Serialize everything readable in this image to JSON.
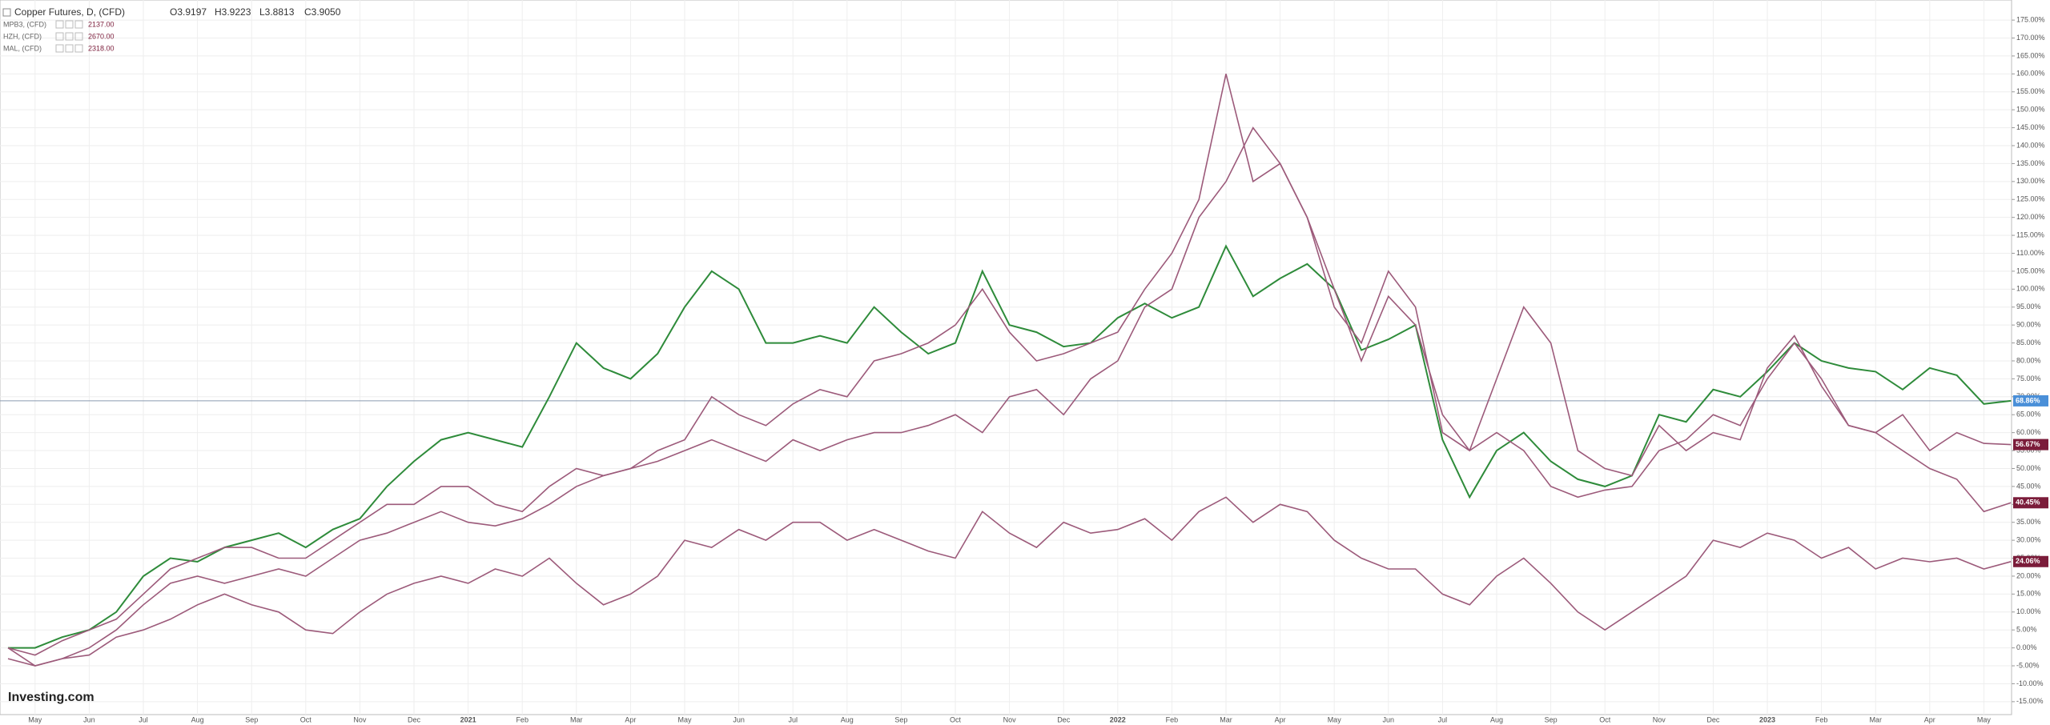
{
  "chart_data": {
    "type": "line",
    "ohlc": [
      "O3.9197",
      "H3.9223",
      "L3.8813",
      "C3.9050"
    ],
    "watermark": "Investing.com",
    "categories": [
      null,
      "May",
      null,
      "Jun",
      null,
      "Jul",
      null,
      "Aug",
      null,
      "Sep",
      null,
      "Oct",
      null,
      "Nov",
      null,
      "Dec",
      null,
      "2021",
      null,
      "Feb",
      null,
      "Mar",
      null,
      "Apr",
      null,
      "May",
      null,
      "Jun",
      null,
      "Jul",
      null,
      "Aug",
      null,
      "Sep",
      null,
      "Oct",
      null,
      "Nov",
      null,
      "Dec",
      null,
      "2022",
      null,
      "Feb",
      null,
      "Mar",
      null,
      "Apr",
      null,
      "May",
      null,
      "Jun",
      null,
      "Jul",
      null,
      "Aug",
      null,
      "Sep",
      null,
      "Oct",
      null,
      "Nov",
      null,
      "Dec",
      null,
      "2023",
      null,
      "Feb",
      null,
      "Mar",
      null,
      "Apr",
      null,
      "May",
      null
    ],
    "series": [
      {
        "name": "Copper Futures, D, (CFD)",
        "color": "#2e8b3a",
        "label_color": "#4a8fd8",
        "last_value_label": "68.86%",
        "values": [
          0,
          0,
          3,
          5,
          10,
          20,
          25,
          24,
          28,
          30,
          32,
          28,
          33,
          36,
          45,
          52,
          58,
          60,
          58,
          56,
          70,
          85,
          78,
          75,
          82,
          95,
          105,
          100,
          85,
          85,
          87,
          85,
          95,
          88,
          82,
          85,
          105,
          90,
          88,
          84,
          85,
          92,
          96,
          92,
          95,
          112,
          98,
          103,
          107,
          100,
          83,
          86,
          90,
          58,
          42,
          55,
          60,
          52,
          47,
          45,
          48,
          65,
          63,
          72,
          70,
          77,
          85,
          80,
          78,
          77,
          72,
          78,
          76,
          68,
          68.86
        ]
      },
      {
        "name": "MPB3, (CFD)",
        "legend_value": "2137.00",
        "color": "#9c5a7a",
        "label_color": "#7b1c3a",
        "last_value_label": "56.67%",
        "values": [
          0,
          -2,
          2,
          5,
          8,
          15,
          22,
          25,
          28,
          28,
          25,
          25,
          30,
          35,
          40,
          40,
          45,
          45,
          40,
          38,
          45,
          50,
          48,
          50,
          55,
          58,
          70,
          65,
          62,
          68,
          72,
          70,
          80,
          82,
          85,
          90,
          100,
          88,
          80,
          82,
          85,
          88,
          100,
          110,
          125,
          160,
          130,
          135,
          120,
          95,
          85,
          105,
          95,
          60,
          55,
          75,
          95,
          85,
          55,
          50,
          48,
          62,
          55,
          60,
          58,
          78,
          87,
          73,
          62,
          60,
          65,
          55,
          60,
          57,
          56.67
        ]
      },
      {
        "name": "HZH, (CFD)",
        "legend_value": "2670.00",
        "color": "#9c5a7a",
        "label_color": "#7b1c3a",
        "last_value_label": "40.45%",
        "values": [
          0,
          -5,
          -3,
          0,
          5,
          12,
          18,
          20,
          18,
          20,
          22,
          20,
          25,
          30,
          32,
          35,
          38,
          35,
          34,
          36,
          40,
          45,
          48,
          50,
          52,
          55,
          58,
          55,
          52,
          58,
          55,
          58,
          60,
          60,
          62,
          65,
          60,
          70,
          72,
          65,
          75,
          80,
          95,
          100,
          120,
          130,
          145,
          135,
          120,
          100,
          80,
          98,
          90,
          65,
          55,
          60,
          55,
          45,
          42,
          44,
          45,
          55,
          58,
          65,
          62,
          75,
          85,
          75,
          62,
          60,
          55,
          50,
          47,
          38,
          40.45
        ]
      },
      {
        "name": "MAL, (CFD)",
        "legend_value": "2318.00",
        "color": "#9c5a7a",
        "label_color": "#7b1c3a",
        "last_value_label": "24.06%",
        "values": [
          -3,
          -5,
          -3,
          -2,
          3,
          5,
          8,
          12,
          15,
          12,
          10,
          5,
          4,
          10,
          15,
          18,
          20,
          18,
          22,
          20,
          25,
          18,
          12,
          15,
          20,
          30,
          28,
          33,
          30,
          35,
          35,
          30,
          33,
          30,
          27,
          25,
          38,
          32,
          28,
          35,
          32,
          33,
          36,
          30,
          38,
          42,
          35,
          40,
          38,
          30,
          25,
          22,
          22,
          15,
          12,
          20,
          25,
          18,
          10,
          5,
          10,
          15,
          20,
          30,
          28,
          32,
          30,
          25,
          28,
          22,
          25,
          24,
          25,
          22,
          24.06
        ]
      }
    ],
    "ylim": [
      -18.6,
      180.6
    ],
    "yticks": [
      {
        "value": 175,
        "label": "175.00%"
      },
      {
        "value": 170,
        "label": "170.00%"
      },
      {
        "value": 165,
        "label": "165.00%"
      },
      {
        "value": 160,
        "label": "160.00%"
      },
      {
        "value": 155,
        "label": "155.00%"
      },
      {
        "value": 150,
        "label": "150.00%"
      },
      {
        "value": 145,
        "label": "145.00%"
      },
      {
        "value": 140,
        "label": "140.00%"
      },
      {
        "value": 135,
        "label": "135.00%"
      },
      {
        "value": 130,
        "label": "130.00%"
      },
      {
        "value": 125,
        "label": "125.00%"
      },
      {
        "value": 120,
        "label": "120.00%"
      },
      {
        "value": 115,
        "label": "115.00%"
      },
      {
        "value": 110,
        "label": "110.00%"
      },
      {
        "value": 105,
        "label": "105.00%"
      },
      {
        "value": 100,
        "label": "100.00%"
      },
      {
        "value": 95,
        "label": "95.00%"
      },
      {
        "value": 90,
        "label": "90.00%"
      },
      {
        "value": 85,
        "label": "85.00%"
      },
      {
        "value": 80,
        "label": "80.00%"
      },
      {
        "value": 75,
        "label": "75.00%"
      },
      {
        "value": 70,
        "label": "70.00%"
      },
      {
        "value": 65,
        "label": "65.00%"
      },
      {
        "value": 60,
        "label": "60.00%"
      },
      {
        "value": 55,
        "label": "55.00%"
      },
      {
        "value": 50,
        "label": "50.00%"
      },
      {
        "value": 45,
        "label": "45.00%"
      },
      {
        "value": 40,
        "label": "40.00%"
      },
      {
        "value": 35,
        "label": "35.00%"
      },
      {
        "value": 30,
        "label": "30.00%"
      },
      {
        "value": 25,
        "label": "25.00%"
      },
      {
        "value": 20,
        "label": "20.00%"
      },
      {
        "value": 15,
        "label": "15.00%"
      },
      {
        "value": 10,
        "label": "10.00%"
      },
      {
        "value": 5,
        "label": "5.00%"
      },
      {
        "value": 0,
        "label": "0.00%"
      },
      {
        "value": -5,
        "label": "-5.00%"
      },
      {
        "value": -10,
        "label": "-10.00%"
      },
      {
        "value": -15,
        "label": "-15.00%"
      }
    ],
    "grid": true
  }
}
